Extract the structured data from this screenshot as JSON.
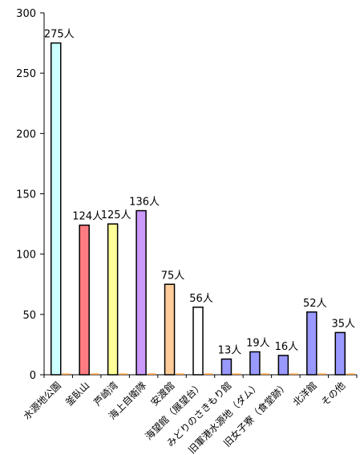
{
  "chart_data": {
    "type": "bar",
    "title": "",
    "xlabel": "",
    "ylabel": "",
    "ylim": [
      0,
      300
    ],
    "yticks": [
      0,
      50,
      100,
      150,
      200,
      250,
      300
    ],
    "grid": false,
    "legend": "none",
    "categories": [
      "水源地公園",
      "釜臥山",
      "芦崎湾",
      "海上自衛隊",
      "安渡館",
      "海望館（展望台）",
      "みどりのさきもり館",
      "旧軍港水源地（ダム）",
      "旧女子寮（食堂跡）",
      "北洋館",
      "その他"
    ],
    "values": [
      275,
      124,
      125,
      136,
      75,
      56,
      13,
      19,
      16,
      52,
      35
    ],
    "data_labels": [
      "275人",
      "124人",
      "125人",
      "136人",
      "75人",
      "56人",
      "13人",
      "19人",
      "16人",
      "52人",
      "35人"
    ],
    "colors": [
      "#ccffff",
      "#ff7c80",
      "#ffff99",
      "#cc99ff",
      "#ffcc99",
      "#ffffff",
      "#9999ff",
      "#9999ff",
      "#9999ff",
      "#9999ff",
      "#9999ff"
    ],
    "stub_color": "#ff9933"
  }
}
